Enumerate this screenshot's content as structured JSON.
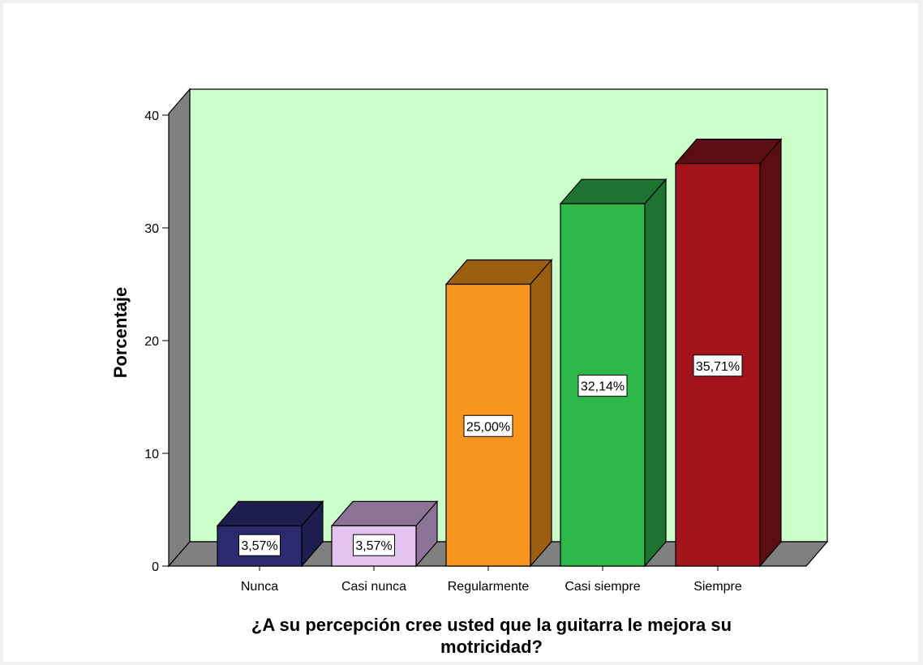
{
  "chart_data": {
    "type": "bar",
    "categories": [
      "Nunca",
      "Casi nunca",
      "Regularmente",
      "Casi siempre",
      "Siempre"
    ],
    "values": [
      3.57,
      3.57,
      25.0,
      32.14,
      35.71
    ],
    "data_labels": [
      "3,57%",
      "3,57%",
      "25,00%",
      "32,14%",
      "35,71%"
    ],
    "colors": [
      "#2a2a6e",
      "#e4c3f0",
      "#f7951f",
      "#2fb84a",
      "#a3141c"
    ],
    "side_colors": [
      "#1d1d4e",
      "#8d7398",
      "#9c5e10",
      "#1d7430",
      "#5c0d12"
    ],
    "xlabel_lines": [
      "¿A su percepción cree usted que la guitarra le mejora su",
      "motricidad?"
    ],
    "ylabel": "Porcentaje",
    "yticks": [
      0,
      10,
      20,
      30,
      40
    ],
    "ylim": [
      0,
      40
    ],
    "plot_background": "#ccffcc",
    "grid": false,
    "legend": "none"
  }
}
